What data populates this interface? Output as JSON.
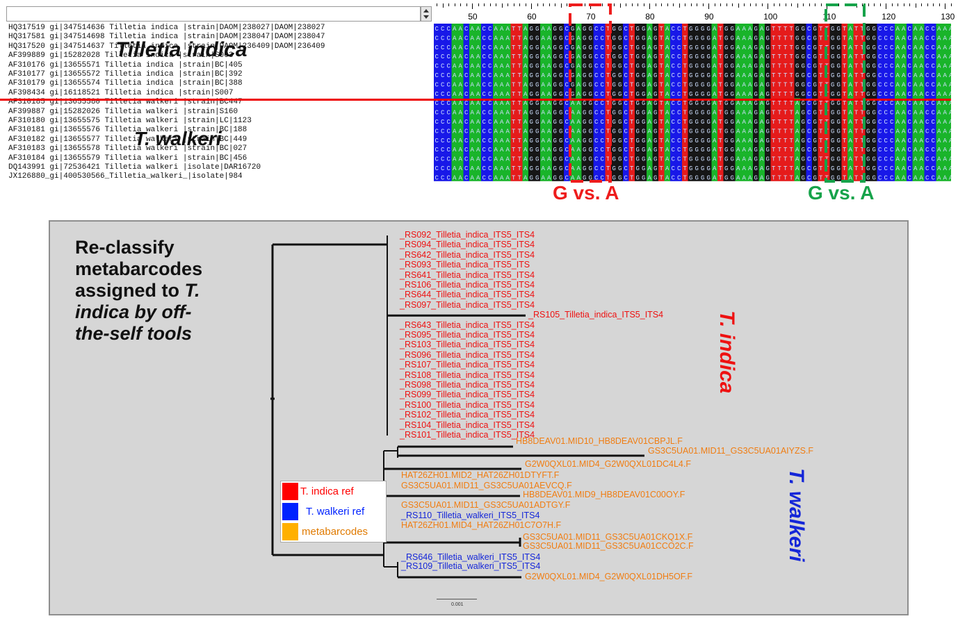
{
  "alignment": {
    "sequence_names": [
      "HQ317519 gi|347514636 Tilletia indica |strain|DAOM|238027|DAOM|238027",
      "HQ317581 gi|347514698 Tilletia indica |strain|DAOM|238047|DAOM|238047",
      "HQ317520 gi|347514637 Tilletia indica |strain|DAOM|236409|DAOM|236409",
      "AF399889 gi|15282028 Tilletia indica |strain|S003",
      "AF310176 gi|13655571 Tilletia indica |strain|BC|405",
      "AF310177 gi|13655572 Tilletia indica |strain|BC|392",
      "AF310179 gi|13655574 Tilletia indica |strain|BC|388",
      "AF398434 gi|16118521 Tilletia indica |strain|S007",
      "AF310185 gi|13655580 Tilletia walkeri |strain|BC447",
      "AF399887 gi|15282026 Tilletia walkeri |strain|S160",
      "AF310180 gi|13655575 Tilletia walkeri |strain|LC|1123",
      "AF310181 gi|13655576 Tilletia walkeri |strain|BC|188",
      "AF310182 gi|13655577 Tilletia walkeri |strain|BC|449",
      "AF310183 gi|13655578 Tilletia walkeri |strain|BC|027",
      "AF310184 gi|13655579 Tilletia walkeri |strain|BC|456",
      "DQ143991 gi|72536421 Tilletia walkeri |isolate|DAR16720",
      "JX126880_gi|400530566_Tilletia_walkeri_|isolate|984"
    ],
    "ruler_labels": [
      "50",
      "60",
      "70",
      "80",
      "90",
      "100",
      "110",
      "120",
      "130"
    ],
    "consensus_indica": "CCCAACAACCAAATTAGGAAGGCGAGGCCTGGCTGGAGTACCTGGGGATGGAAAGAGTTTTGGCGTTGGTATTGG",
    "consensus_walkeri": "CCCAACAACCAAATTAGGAAGGCAAGGCCTGGCTGGAGTACCTGGGGATGGAAAGAGTTTTAGCGTTGGTATTGG",
    "group_labels": {
      "indica": "Tilletia indica",
      "walkeri": "T. walkeri"
    },
    "snp_labels": [
      {
        "text": "G vs. A",
        "color": "#ee1c1c"
      },
      {
        "text": "G vs. A",
        "color": "#16a34a"
      }
    ],
    "base_colors": {
      "A": "#19b42a",
      "C": "#1818e8",
      "G": "#161616",
      "T": "#e51b1b"
    }
  },
  "tree": {
    "title_lines": [
      {
        "text": "Re-classify",
        "italic": false
      },
      {
        "text": "metabarcodes",
        "italic": false
      },
      {
        "text": "assigned to ",
        "italic": false,
        "tail": "T.",
        "tail_italic": true
      },
      {
        "text": "indica by off-",
        "italic": true
      },
      {
        "text": "the-self tools",
        "italic": true
      }
    ],
    "indica_leaves": [
      "_RS092_Tilletia_indica_ITS5_ITS4",
      "_RS094_Tilletia_indica_ITS5_ITS4",
      "_RS642_Tilletia_indica_ITS5_ITS4",
      "_RS093_Tilletia_indica_ITS5_ITS",
      "_RS641_Tilletia_indica_ITS5_ITS4",
      "_RS106_Tilletia_indica_ITS5_ITS4",
      "_RS644_Tilletia_indica_ITS5_ITS4",
      "_RS097_Tilletia_indica_ITS5_ITS4",
      "_RS105_Tilletia_indica_ITS5_ITS4",
      "_RS643_Tilletia_indica_ITS5_ITS4",
      "_RS095_Tilletia_indica_ITS5_ITS4",
      "_RS103_Tilletia_indica_ITS5_ITS4",
      "_RS096_Tilletia_indica_ITS5_ITS4",
      "_RS107_Tilletia_indica_ITS5_ITS4",
      "_RS108_Tilletia_indica_ITS5_ITS4",
      "_RS098_Tilletia_indica_ITS5_ITS4",
      "_RS099_Tilletia_indica_ITS5_ITS4",
      "_RS100_Tilletia_indica_ITS5_ITS4",
      "_RS102_Tilletia_indica_ITS5_ITS4",
      "_RS104_Tilletia_indica_ITS5_ITS4",
      "_RS101_Tilletia_indica_ITS5_ITS4"
    ],
    "walkeri_leaves": [
      {
        "label": "HB8DEAV01.MID10_HB8DEAV01CBPJL.F",
        "kind": "metabarcode"
      },
      {
        "label": "GS3C5UA01.MID11_GS3C5UA01AIYZS.F",
        "kind": "metabarcode"
      },
      {
        "label": "G2W0QXL01.MID4_G2W0QXL01DC4L4.F",
        "kind": "metabarcode"
      },
      {
        "label": "HAT26ZH01.MID2_HAT26ZH01DTYFT.F",
        "kind": "metabarcode"
      },
      {
        "label": "GS3C5UA01.MID11_GS3C5UA01AEVCQ.F",
        "kind": "metabarcode"
      },
      {
        "label": "HB8DEAV01.MID9_HB8DEAV01C00OY.F",
        "kind": "metabarcode"
      },
      {
        "label": "GS3C5UA01.MID11_GS3C5UA01ADTGY.F",
        "kind": "metabarcode"
      },
      {
        "label": "_RS110_Tilletia_walkeri_ITS5_ITS4",
        "kind": "walkeri_ref"
      },
      {
        "label": "HAT26ZH01.MID4_HAT26ZH01C7O7H.F",
        "kind": "metabarcode"
      },
      {
        "label": "GS3C5UA01.MID11_GS3C5UA01CKQ1X.F",
        "kind": "metabarcode"
      },
      {
        "label": "GS3C5UA01.MID11_GS3C5UA01CCO2C.F",
        "kind": "metabarcode"
      },
      {
        "label": "_RS646_Tilletia_walkeri_ITS5_ITS4",
        "kind": "walkeri_ref"
      },
      {
        "label": "_RS109_Tilletia_walkeri_ITS5_ITS4",
        "kind": "walkeri_ref"
      },
      {
        "label": "G2W0QXL01.MID4_G2W0QXL01DH5OF.F",
        "kind": "metabarcode"
      }
    ],
    "clade_labels": {
      "indica": "T. indica",
      "walkeri": "T. walkeri"
    },
    "legend": [
      {
        "label": "T. indica ref",
        "color": "#ff0000",
        "text_color": "#ff0000"
      },
      {
        "label": "T. walkeri ref",
        "color": "#0022ff",
        "text_color": "#0022ff"
      },
      {
        "label": "metabarcodes",
        "color": "#ffb000",
        "text_color": "#e07a00"
      }
    ],
    "scale_label": "0.001",
    "colors": {
      "indica_ref": "#ee1111",
      "walkeri_ref": "#1426d8",
      "metabarcode": "#f07d12",
      "branch": "#111111"
    }
  }
}
